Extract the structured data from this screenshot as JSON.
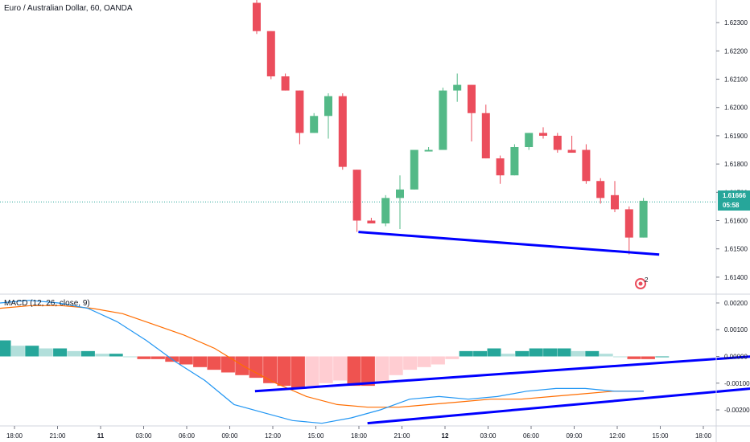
{
  "title": "Euro / Australian Dollar, 60, OANDA",
  "macd_label": "MACD (12, 26, close, 9)",
  "colors": {
    "up": "#53b987",
    "down": "#eb4d5c",
    "hist_pos_strong": "#26a69a",
    "hist_pos_weak": "#b2dfdb",
    "hist_neg_strong": "#ef5350",
    "hist_neg_weak": "#ffcdd2",
    "macd_line": "#2196f3",
    "signal_line": "#ff6d00",
    "trendline": "#0000ff",
    "price_line": "#26a69a"
  },
  "last_price_tag": {
    "price": "1.61666",
    "countdown": "05:58"
  },
  "alert_badge": "2",
  "chart_data": [
    {
      "type": "candlestick",
      "title": "Euro / Australian Dollar, 60, OANDA",
      "ylim": [
        1.6134,
        1.6238
      ],
      "y_ticks": [
        "1.62300",
        "1.62200",
        "1.62100",
        "1.62000",
        "1.61900",
        "1.61800",
        "1.61700",
        "1.61600",
        "1.61500",
        "1.61400"
      ],
      "candles": [
        {
          "o": 1.6237,
          "h": 1.6238,
          "l": 1.6226,
          "c": 1.6227
        },
        {
          "o": 1.6227,
          "h": 1.6227,
          "l": 1.621,
          "c": 1.6211
        },
        {
          "o": 1.6211,
          "h": 1.6212,
          "l": 1.6206,
          "c": 1.6206
        },
        {
          "o": 1.6206,
          "h": 1.6206,
          "l": 1.6187,
          "c": 1.6191
        },
        {
          "o": 1.6191,
          "h": 1.6198,
          "l": 1.6191,
          "c": 1.6197
        },
        {
          "o": 1.6197,
          "h": 1.6205,
          "l": 1.6189,
          "c": 1.6204
        },
        {
          "o": 1.6204,
          "h": 1.6205,
          "l": 1.6178,
          "c": 1.6179
        },
        {
          "o": 1.6178,
          "h": 1.6178,
          "l": 1.6156,
          "c": 1.616
        },
        {
          "o": 1.616,
          "h": 1.6161,
          "l": 1.6159,
          "c": 1.6159
        },
        {
          "o": 1.6159,
          "h": 1.6169,
          "l": 1.6158,
          "c": 1.6168
        },
        {
          "o": 1.6168,
          "h": 1.6176,
          "l": 1.6157,
          "c": 1.6171
        },
        {
          "o": 1.6171,
          "h": 1.6185,
          "l": 1.6171,
          "c": 1.6185
        },
        {
          "o": 1.6185,
          "h": 1.6186,
          "l": 1.6185,
          "c": 1.6185
        },
        {
          "o": 1.6185,
          "h": 1.6207,
          "l": 1.6185,
          "c": 1.6206
        },
        {
          "o": 1.6206,
          "h": 1.6212,
          "l": 1.6202,
          "c": 1.6208
        },
        {
          "o": 1.6208,
          "h": 1.6208,
          "l": 1.6188,
          "c": 1.6198
        },
        {
          "o": 1.6198,
          "h": 1.6201,
          "l": 1.6182,
          "c": 1.6182
        },
        {
          "o": 1.6182,
          "h": 1.6183,
          "l": 1.6173,
          "c": 1.6176
        },
        {
          "o": 1.6176,
          "h": 1.6187,
          "l": 1.6176,
          "c": 1.6186
        },
        {
          "o": 1.6186,
          "h": 1.6191,
          "l": 1.6185,
          "c": 1.6191
        },
        {
          "o": 1.6191,
          "h": 1.6193,
          "l": 1.6189,
          "c": 1.619
        },
        {
          "o": 1.619,
          "h": 1.6191,
          "l": 1.6184,
          "c": 1.6185
        },
        {
          "o": 1.6185,
          "h": 1.619,
          "l": 1.6184,
          "c": 1.6184
        },
        {
          "o": 1.6185,
          "h": 1.6187,
          "l": 1.6173,
          "c": 1.6174
        },
        {
          "o": 1.6174,
          "h": 1.6175,
          "l": 1.6166,
          "c": 1.6168
        },
        {
          "o": 1.6169,
          "h": 1.6174,
          "l": 1.6163,
          "c": 1.6164
        },
        {
          "o": 1.6164,
          "h": 1.6165,
          "l": 1.6148,
          "c": 1.6154
        },
        {
          "o": 1.6154,
          "h": 1.6168,
          "l": 1.6154,
          "c": 1.6167
        }
      ],
      "trendlines": [
        [
          [
            7.1,
            1.6156
          ],
          [
            28.1,
            1.6148
          ]
        ]
      ]
    },
    {
      "type": "macd",
      "title": "MACD (12, 26, close, 9)",
      "ylim": [
        -0.0026,
        0.0023
      ],
      "y_ticks": [
        "0.00200",
        "0.00100",
        "0.00000",
        "-0.00100",
        "-0.00200"
      ],
      "histogram": [
        0.0006,
        0.0004,
        0.0004,
        0.0003,
        0.0003,
        0.0002,
        0.0002,
        0.0001,
        0.0001,
        0.0,
        -0.0001,
        -0.0001,
        -0.0002,
        -0.0003,
        -0.0004,
        -0.0005,
        -0.0006,
        -0.0007,
        -0.0008,
        -0.001,
        -0.0011,
        -0.0012,
        -0.0011,
        -0.001,
        -0.0009,
        -0.0011,
        -0.0011,
        -0.001,
        -0.0007,
        -0.0005,
        -0.0004,
        -0.0003,
        -0.0001,
        0.0002,
        0.0002,
        0.0003,
        0.0001,
        0.0002,
        0.0003,
        0.0003,
        0.0003,
        0.0002,
        0.0002,
        0.0001,
        0.0,
        -0.0001,
        -0.0001,
        0.0
      ],
      "macd": [
        0.002,
        0.0021,
        0.002,
        0.0018,
        0.0013,
        0.0006,
        -0.0002,
        -0.0009,
        -0.0018,
        -0.0021,
        -0.0024,
        -0.0025,
        -0.0023,
        -0.002,
        -0.0016,
        -0.0015,
        -0.0016,
        -0.0015,
        -0.0013,
        -0.0012,
        -0.0012,
        -0.0013,
        -0.0013
      ],
      "signal": [
        0.0018,
        0.0019,
        0.0019,
        0.0018,
        0.0016,
        0.0012,
        0.0008,
        0.0003,
        -0.0004,
        -0.001,
        -0.0015,
        -0.0018,
        -0.0019,
        -0.0019,
        -0.0018,
        -0.0017,
        -0.0016,
        -0.0016,
        -0.0015,
        -0.0014,
        -0.0013,
        -0.0013
      ],
      "trendlines": [
        [
          [
            0.34,
            -0.0013
          ],
          [
            0.96,
            0.0
          ]
        ],
        [
          [
            0.49,
            -0.0025
          ],
          [
            0.96,
            -0.0012
          ]
        ]
      ]
    }
  ],
  "x_ticks": [
    "18:00",
    "21:00",
    "11",
    "03:00",
    "06:00",
    "09:00",
    "12:00",
    "15:00",
    "18:00",
    "21:00",
    "12",
    "03:00",
    "06:00",
    "09:00",
    "12:00",
    "15:00",
    "18:00"
  ]
}
